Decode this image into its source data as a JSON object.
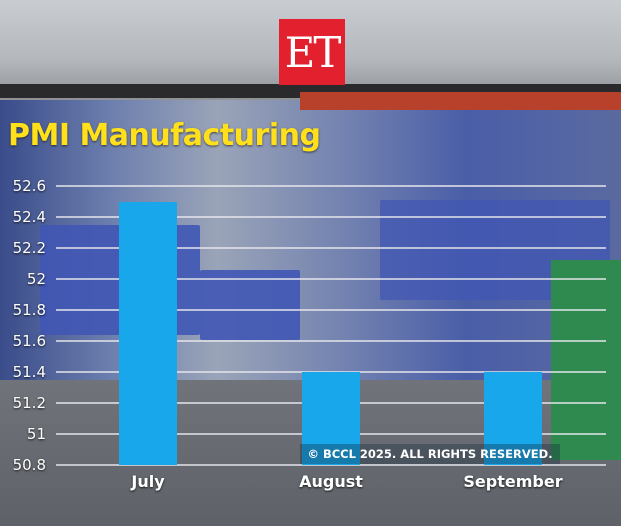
{
  "logo": {
    "text": "ET",
    "color": "#e3202e"
  },
  "title": "PMI Manufacturing",
  "copyright": "© BCCL 2025. ALL RIGHTS RESERVED.",
  "colors": {
    "bar": "#17a7ea",
    "title": "#ffe01a",
    "text": "#ffffff"
  },
  "chart_data": {
    "type": "bar",
    "title": "PMI Manufacturing",
    "categories": [
      "July",
      "August",
      "September"
    ],
    "values": [
      52.5,
      51.4,
      51.4
    ],
    "xlabel": "",
    "ylabel": "",
    "ylim": [
      50.8,
      52.6
    ],
    "yticks": [
      "52.6",
      "52.4",
      "52.2",
      "52",
      "51.8",
      "51.6",
      "51.4",
      "51.2",
      "51",
      "50.8"
    ],
    "grid": true,
    "legend": "none"
  }
}
